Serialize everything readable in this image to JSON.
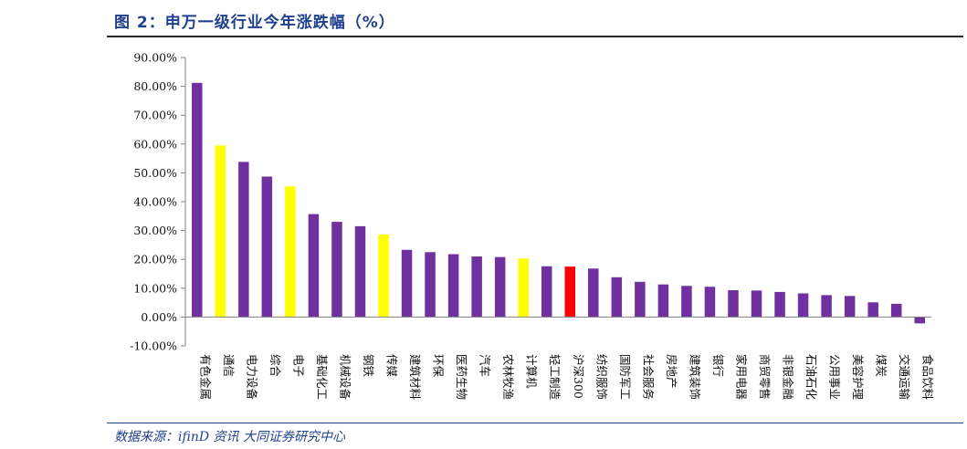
{
  "title": "图 2：申万一级行业今年涨跌幅（%）",
  "source": "数据来源：ifinD 资讯  大同证券研究中心",
  "chart_data": {
    "type": "bar",
    "title": "图 2：申万一级行业今年涨跌幅（%）",
    "xlabel": "",
    "ylabel": "",
    "ylim": [
      -10,
      90
    ],
    "yticks": [
      -10,
      0,
      10,
      20,
      30,
      40,
      50,
      60,
      70,
      80,
      90
    ],
    "ytick_labels": [
      "-10.00%",
      "0.00%",
      "10.00%",
      "20.00%",
      "30.00%",
      "40.00%",
      "50.00%",
      "60.00%",
      "70.00%",
      "80.00%",
      "90.00%"
    ],
    "grid": false,
    "legend": "none",
    "categories": [
      "有色金属",
      "通信",
      "电力设备",
      "综合",
      "电子",
      "基础化工",
      "机械设备",
      "钢铁",
      "传媒",
      "建筑材料",
      "环保",
      "医药生物",
      "汽车",
      "农林牧渔",
      "计算机",
      "轻工制造",
      "沪深300",
      "纺织服饰",
      "国防军工",
      "社会服务",
      "房地产",
      "建筑装饰",
      "银行",
      "家用电器",
      "商贸零售",
      "非银金融",
      "石油石化",
      "公用事业",
      "美容护理",
      "煤炭",
      "交通运输",
      "食品饮料"
    ],
    "values": [
      81.2,
      59.5,
      53.8,
      48.7,
      45.3,
      35.7,
      33.0,
      31.5,
      28.6,
      23.3,
      22.5,
      21.8,
      21.0,
      20.8,
      20.3,
      17.6,
      17.5,
      16.8,
      13.8,
      12.2,
      11.3,
      10.8,
      10.5,
      9.3,
      9.2,
      8.7,
      8.2,
      7.6,
      7.3,
      5.1,
      4.6,
      -2.2
    ],
    "colors": [
      "#7030a0",
      "#ffff00",
      "#7030a0",
      "#7030a0",
      "#ffff00",
      "#7030a0",
      "#7030a0",
      "#7030a0",
      "#ffff00",
      "#7030a0",
      "#7030a0",
      "#7030a0",
      "#7030a0",
      "#7030a0",
      "#ffff00",
      "#7030a0",
      "#ff0000",
      "#7030a0",
      "#7030a0",
      "#7030a0",
      "#7030a0",
      "#7030a0",
      "#7030a0",
      "#7030a0",
      "#7030a0",
      "#7030a0",
      "#7030a0",
      "#7030a0",
      "#7030a0",
      "#7030a0",
      "#7030a0",
      "#7030a0"
    ]
  }
}
